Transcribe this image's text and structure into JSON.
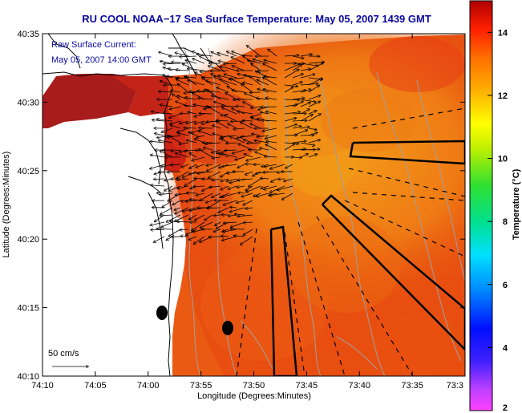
{
  "title": "RU COOL  NOAA−17  Sea Surface Temperature:  May 05, 2007 1439 GMT",
  "annotation": {
    "line1": "Raw Surface Current:",
    "line2": "May 05, 2007 14:00 GMT"
  },
  "axes": {
    "xlabel": "Longitude (Degrees:Minutes)",
    "ylabel": "Latitude (Degrees:Minutes)",
    "x_ticks": [
      "74:10",
      "74:05",
      "74:00",
      "73:55",
      "73:50",
      "73:45",
      "73:40",
      "73:35",
      "73:3"
    ],
    "y_ticks": [
      "40:35",
      "40:30",
      "40:25",
      "40:20",
      "40:15",
      "40:10"
    ]
  },
  "colorbar": {
    "label": "Temperature (°C)",
    "ticks": [
      "14",
      "12",
      "10",
      "8",
      "6",
      "4",
      "2"
    ],
    "min": 2,
    "max": 15
  },
  "scale_label": "50 cm/s",
  "colors": {
    "title": "#0a0aa0",
    "land": "#ffffff",
    "sst_warm": "#e84a0f",
    "sst_hot": "#c41616",
    "sst_coolest": "#f29a18",
    "coast": "#000000",
    "isobath": "#a0a0a0"
  }
}
